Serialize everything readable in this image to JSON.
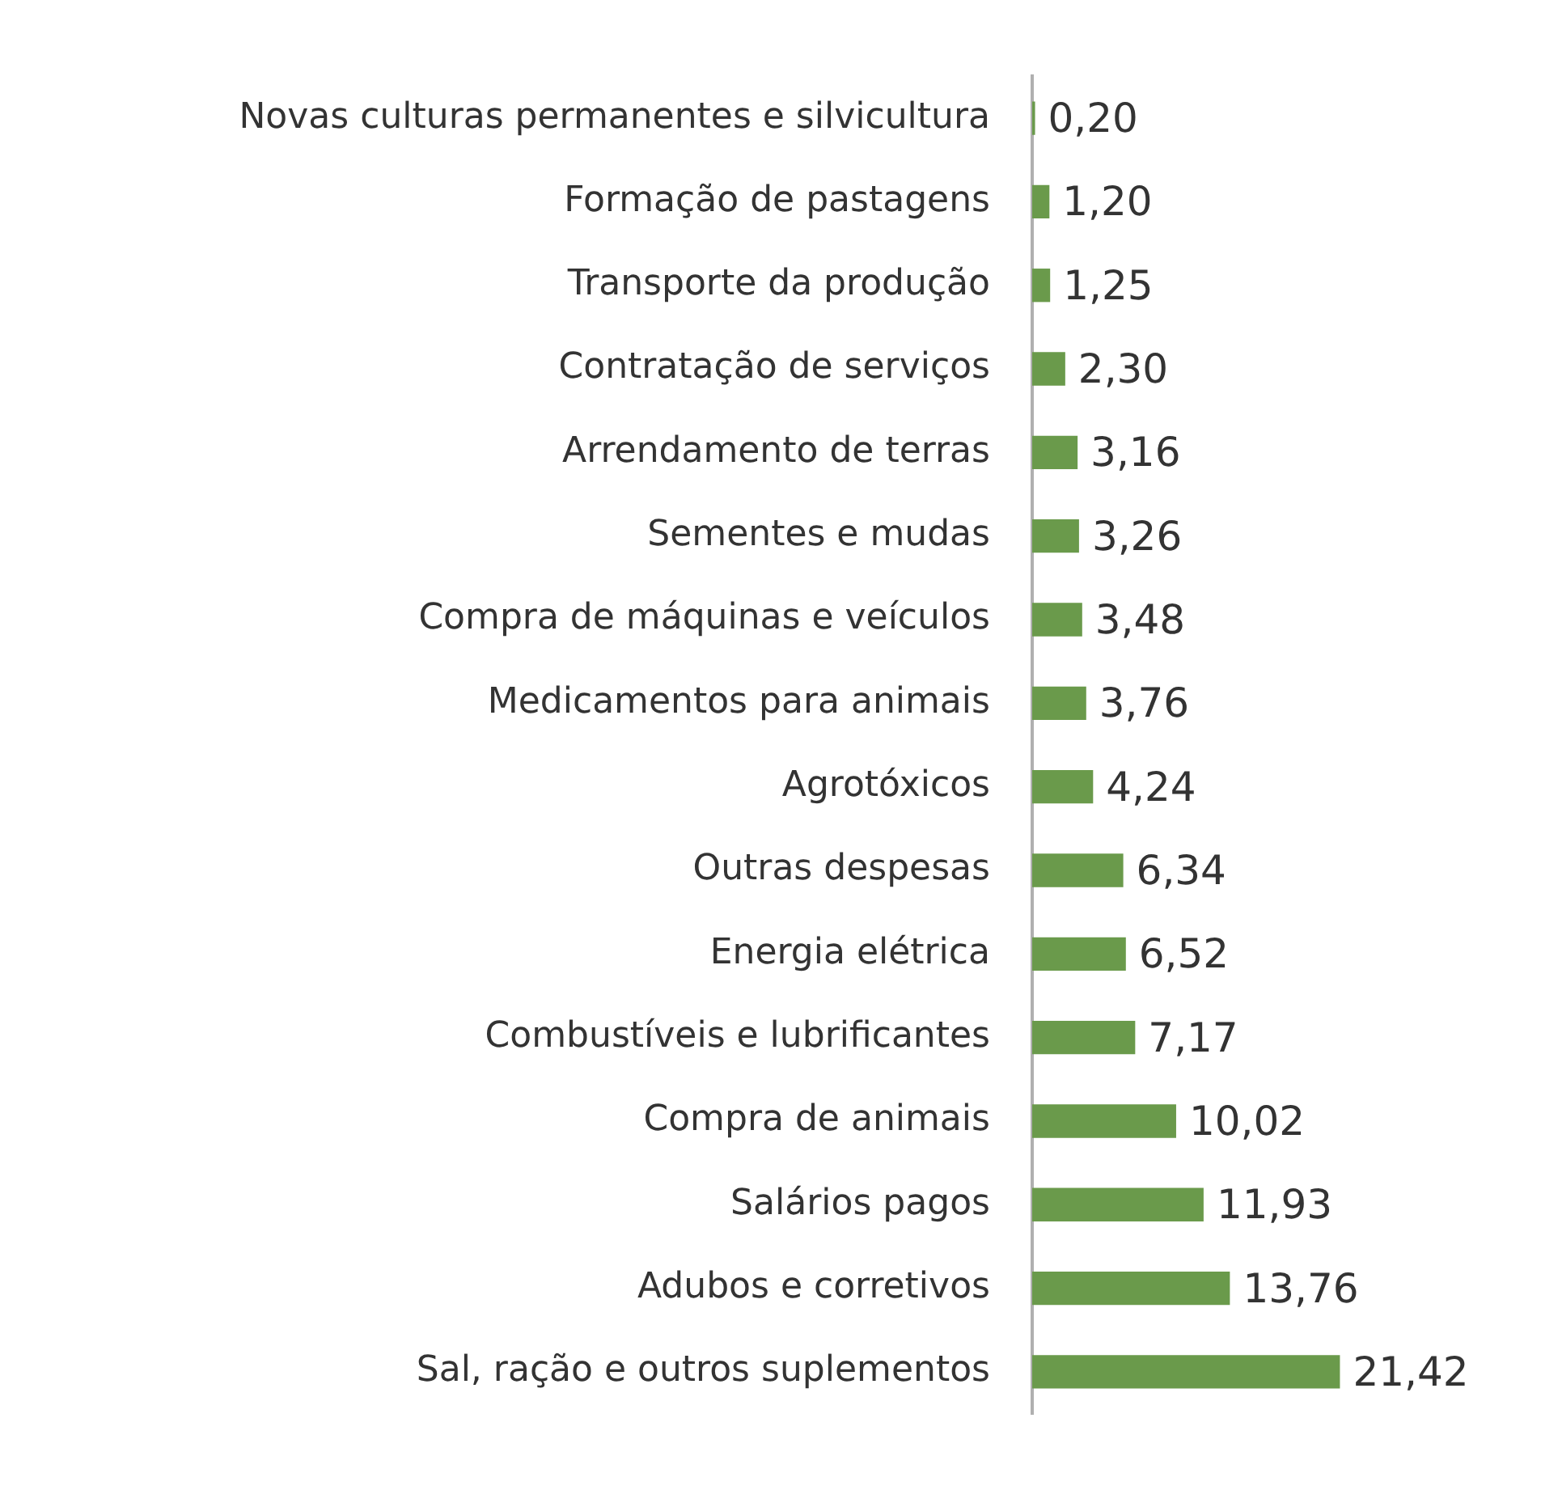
{
  "chart_data": {
    "type": "bar",
    "orientation": "horizontal",
    "categories": [
      "Novas culturas permanentes e silvicultura",
      "Formação de pastagens",
      "Transporte da produção",
      "Contratação de serviços",
      "Arrendamento de terras",
      "Sementes e mudas",
      "Compra de máquinas e veículos",
      "Medicamentos para animais",
      "Agrotóxicos",
      "Outras despesas",
      "Energia elétrica",
      "Combustíveis e lubrificantes",
      "Compra de animais",
      "Salários pagos",
      "Adubos e corretivos",
      "Sal, ração e outros suplementos"
    ],
    "values": [
      0.2,
      1.2,
      1.25,
      2.3,
      3.16,
      3.26,
      3.48,
      3.76,
      4.24,
      6.34,
      6.52,
      7.17,
      10.02,
      11.93,
      13.76,
      21.42
    ],
    "value_labels": [
      "0,20",
      "1,20",
      "1,25",
      "2,30",
      "3,16",
      "3,26",
      "3,48",
      "3,76",
      "4,24",
      "6,34",
      "6,52",
      "7,17",
      "10,02",
      "11,93",
      "13,76",
      "21,42"
    ],
    "color": "#6a9a4b",
    "legend": false,
    "tick_labels": "y"
  }
}
